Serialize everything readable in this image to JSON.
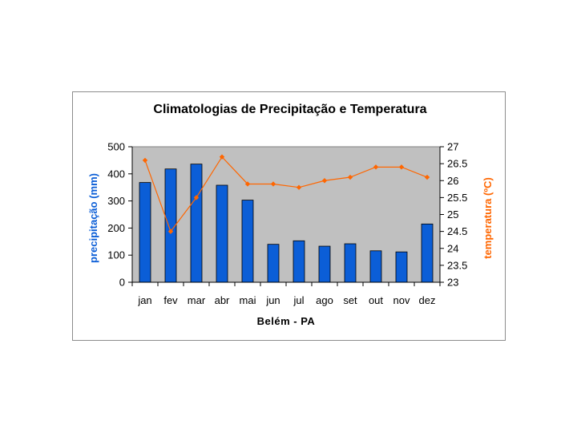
{
  "chart_data": {
    "type": "bar+line",
    "title": "Climatologias de Precipitação e Temperatura",
    "xlabel": "Belém  - PA",
    "categories": [
      "jan",
      "fev",
      "mar",
      "abr",
      "mai",
      "jun",
      "jul",
      "ago",
      "set",
      "out",
      "nov",
      "dez"
    ],
    "series": [
      {
        "name": "precipitação",
        "type": "bar",
        "axis": "left",
        "color": "#0b5ed7",
        "values": [
          368,
          418,
          436,
          358,
          303,
          140,
          153,
          133,
          142,
          116,
          112,
          215
        ]
      },
      {
        "name": "temperatura",
        "type": "line",
        "axis": "right",
        "color": "#ff6600",
        "values": [
          26.6,
          24.5,
          25.5,
          26.7,
          25.9,
          25.9,
          25.8,
          26.0,
          26.1,
          26.4,
          26.4,
          26.1
        ]
      }
    ],
    "y_left": {
      "label": "precipitação (mm)",
      "min": 0,
      "max": 500,
      "ticks": [
        "0",
        "100",
        "200",
        "300",
        "400",
        "500"
      ],
      "color": "#0b5ed7"
    },
    "y_right": {
      "label": "temperatura (ºC)",
      "min": 23,
      "max": 27,
      "ticks": [
        "23",
        "23.5",
        "24",
        "24.5",
        "25",
        "25.5",
        "26",
        "26.5",
        "27"
      ],
      "color": "#ff6600"
    },
    "plot_background": "#c0c0c0",
    "grid": false,
    "legend": "none"
  }
}
